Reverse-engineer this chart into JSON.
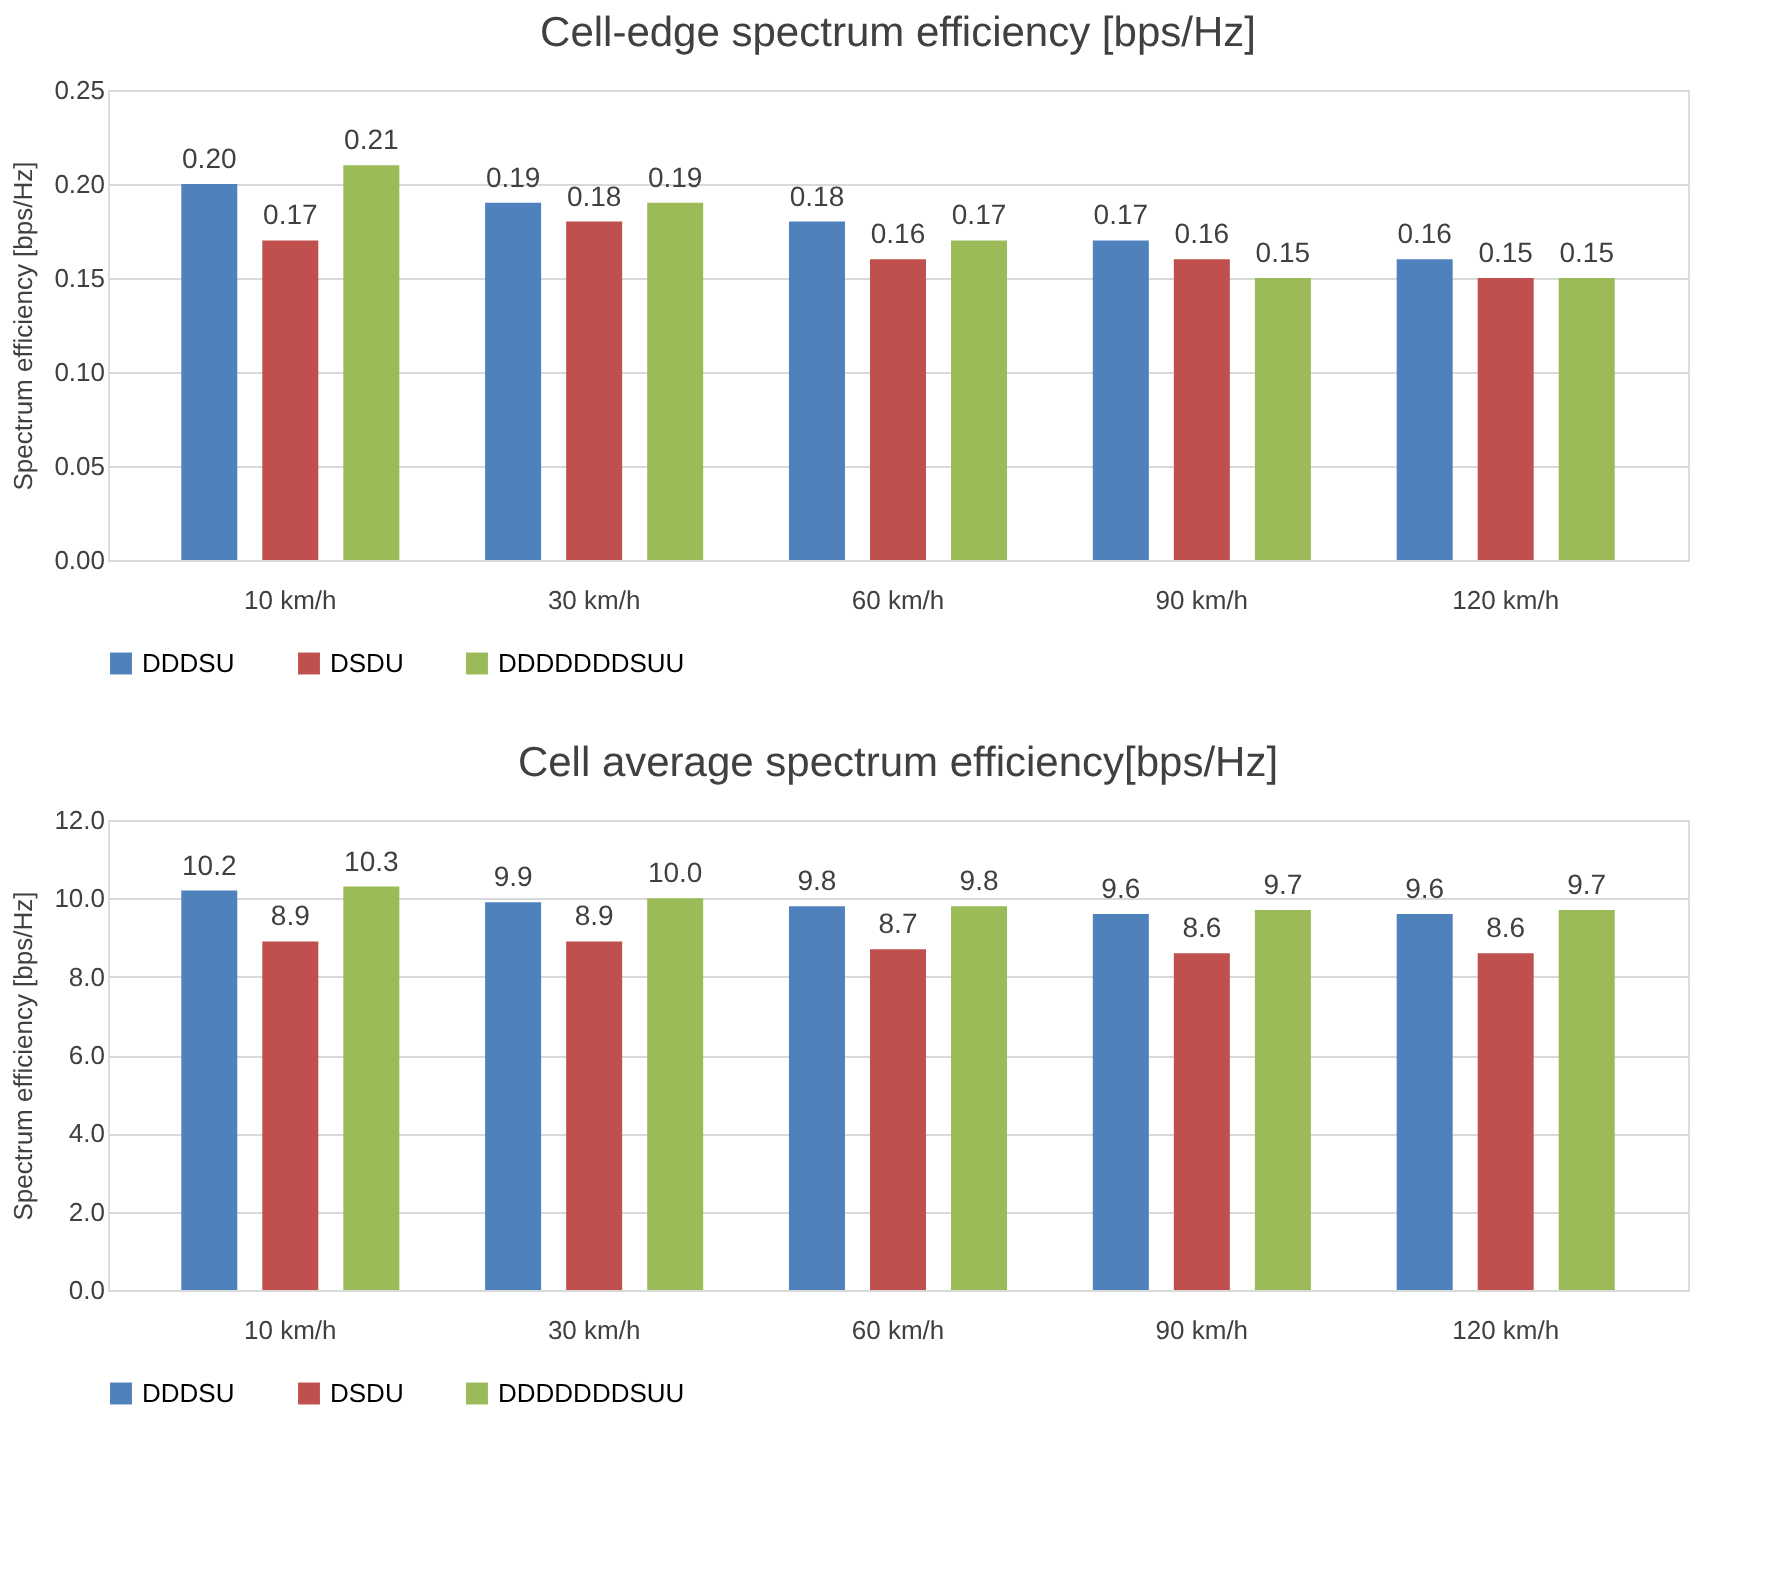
{
  "chart_data": [
    {
      "type": "bar",
      "title": "Cell-edge spectrum efficiency [bps/Hz]",
      "ylabel": "Spectrum efficiency [bps/Hz]",
      "categories": [
        "10 km/h",
        "30 km/h",
        "60 km/h",
        "90 km/h",
        "120 km/h"
      ],
      "series": [
        {
          "name": "DDDSU",
          "color": "#4f81bd",
          "values": [
            0.2,
            0.19,
            0.18,
            0.17,
            0.16
          ],
          "value_labels": [
            "0.20",
            "0.19",
            "0.18",
            "0.17",
            "0.16"
          ]
        },
        {
          "name": "DSDU",
          "color": "#c0504d",
          "values": [
            0.17,
            0.18,
            0.16,
            0.16,
            0.15
          ],
          "value_labels": [
            "0.17",
            "0.18",
            "0.16",
            "0.16",
            "0.15"
          ]
        },
        {
          "name": "DDDDDDDSUU",
          "color": "#9bbb59",
          "values": [
            0.21,
            0.19,
            0.17,
            0.15,
            0.15
          ],
          "value_labels": [
            "0.21",
            "0.19",
            "0.17",
            "0.15",
            "0.15"
          ]
        }
      ],
      "ylim": [
        0,
        0.25
      ],
      "yticks": [
        {
          "value": 0,
          "label": "0.00"
        },
        {
          "value": 0.05,
          "label": "0.05"
        },
        {
          "value": 0.1,
          "label": "0.10"
        },
        {
          "value": 0.15,
          "label": "0.15"
        },
        {
          "value": 0.2,
          "label": "0.20"
        },
        {
          "value": 0.25,
          "label": "0.25"
        }
      ],
      "grid": "y",
      "legend": "bottom"
    },
    {
      "type": "bar",
      "title": "Cell average spectrum efficiency[bps/Hz]",
      "ylabel": "Spectrum efficiency [bps/Hz]",
      "categories": [
        "10 km/h",
        "30 km/h",
        "60 km/h",
        "90 km/h",
        "120 km/h"
      ],
      "series": [
        {
          "name": "DDDSU",
          "color": "#4f81bd",
          "values": [
            10.2,
            9.9,
            9.8,
            9.6,
            9.6
          ],
          "value_labels": [
            "10.2",
            "9.9",
            "9.8",
            "9.6",
            "9.6"
          ]
        },
        {
          "name": "DSDU",
          "color": "#c0504d",
          "values": [
            8.9,
            8.9,
            8.7,
            8.6,
            8.6
          ],
          "value_labels": [
            "8.9",
            "8.9",
            "8.7",
            "8.6",
            "8.6"
          ]
        },
        {
          "name": "DDDDDDDSUU",
          "color": "#9bbb59",
          "values": [
            10.3,
            10.0,
            9.8,
            9.7,
            9.7
          ],
          "value_labels": [
            "10.3",
            "10.0",
            "9.8",
            "9.7",
            "9.7"
          ]
        }
      ],
      "ylim": [
        0,
        12
      ],
      "yticks": [
        {
          "value": 0,
          "label": "0.0"
        },
        {
          "value": 2,
          "label": "2.0"
        },
        {
          "value": 4,
          "label": "4.0"
        },
        {
          "value": 6,
          "label": "6.0"
        },
        {
          "value": 8,
          "label": "8.0"
        },
        {
          "value": 10,
          "label": "10.0"
        },
        {
          "value": 12,
          "label": "12.0"
        }
      ],
      "grid": "y",
      "legend": "bottom"
    }
  ]
}
